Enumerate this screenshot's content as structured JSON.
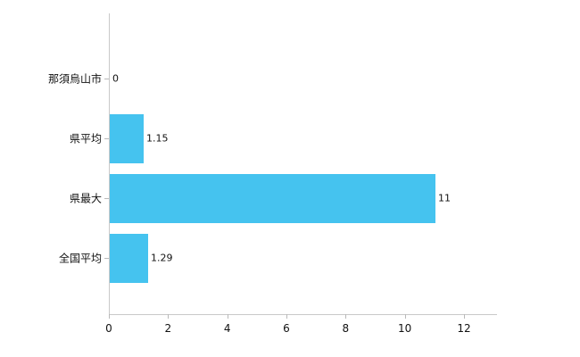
{
  "chart_data": {
    "type": "bar",
    "orientation": "horizontal",
    "title": "",
    "xlabel": "",
    "ylabel": "",
    "categories": [
      "那須烏山市",
      "県平均",
      "県最大",
      "全国平均"
    ],
    "values": [
      0,
      1.15,
      11,
      1.29
    ],
    "value_labels": [
      "0",
      "1.15",
      "11",
      "1.29"
    ],
    "x_ticks": [
      0,
      2,
      4,
      6,
      8,
      10,
      12
    ],
    "x_tick_labels": [
      "0",
      "2",
      "4",
      "6",
      "8",
      "10",
      "12"
    ],
    "xlim": [
      0,
      13.1
    ],
    "grid": false,
    "legend": "none",
    "colors": {
      "bar_fill": "#45c3ef",
      "axis": "#c9c9c9",
      "text": "#111111",
      "background": "#ffffff"
    }
  }
}
